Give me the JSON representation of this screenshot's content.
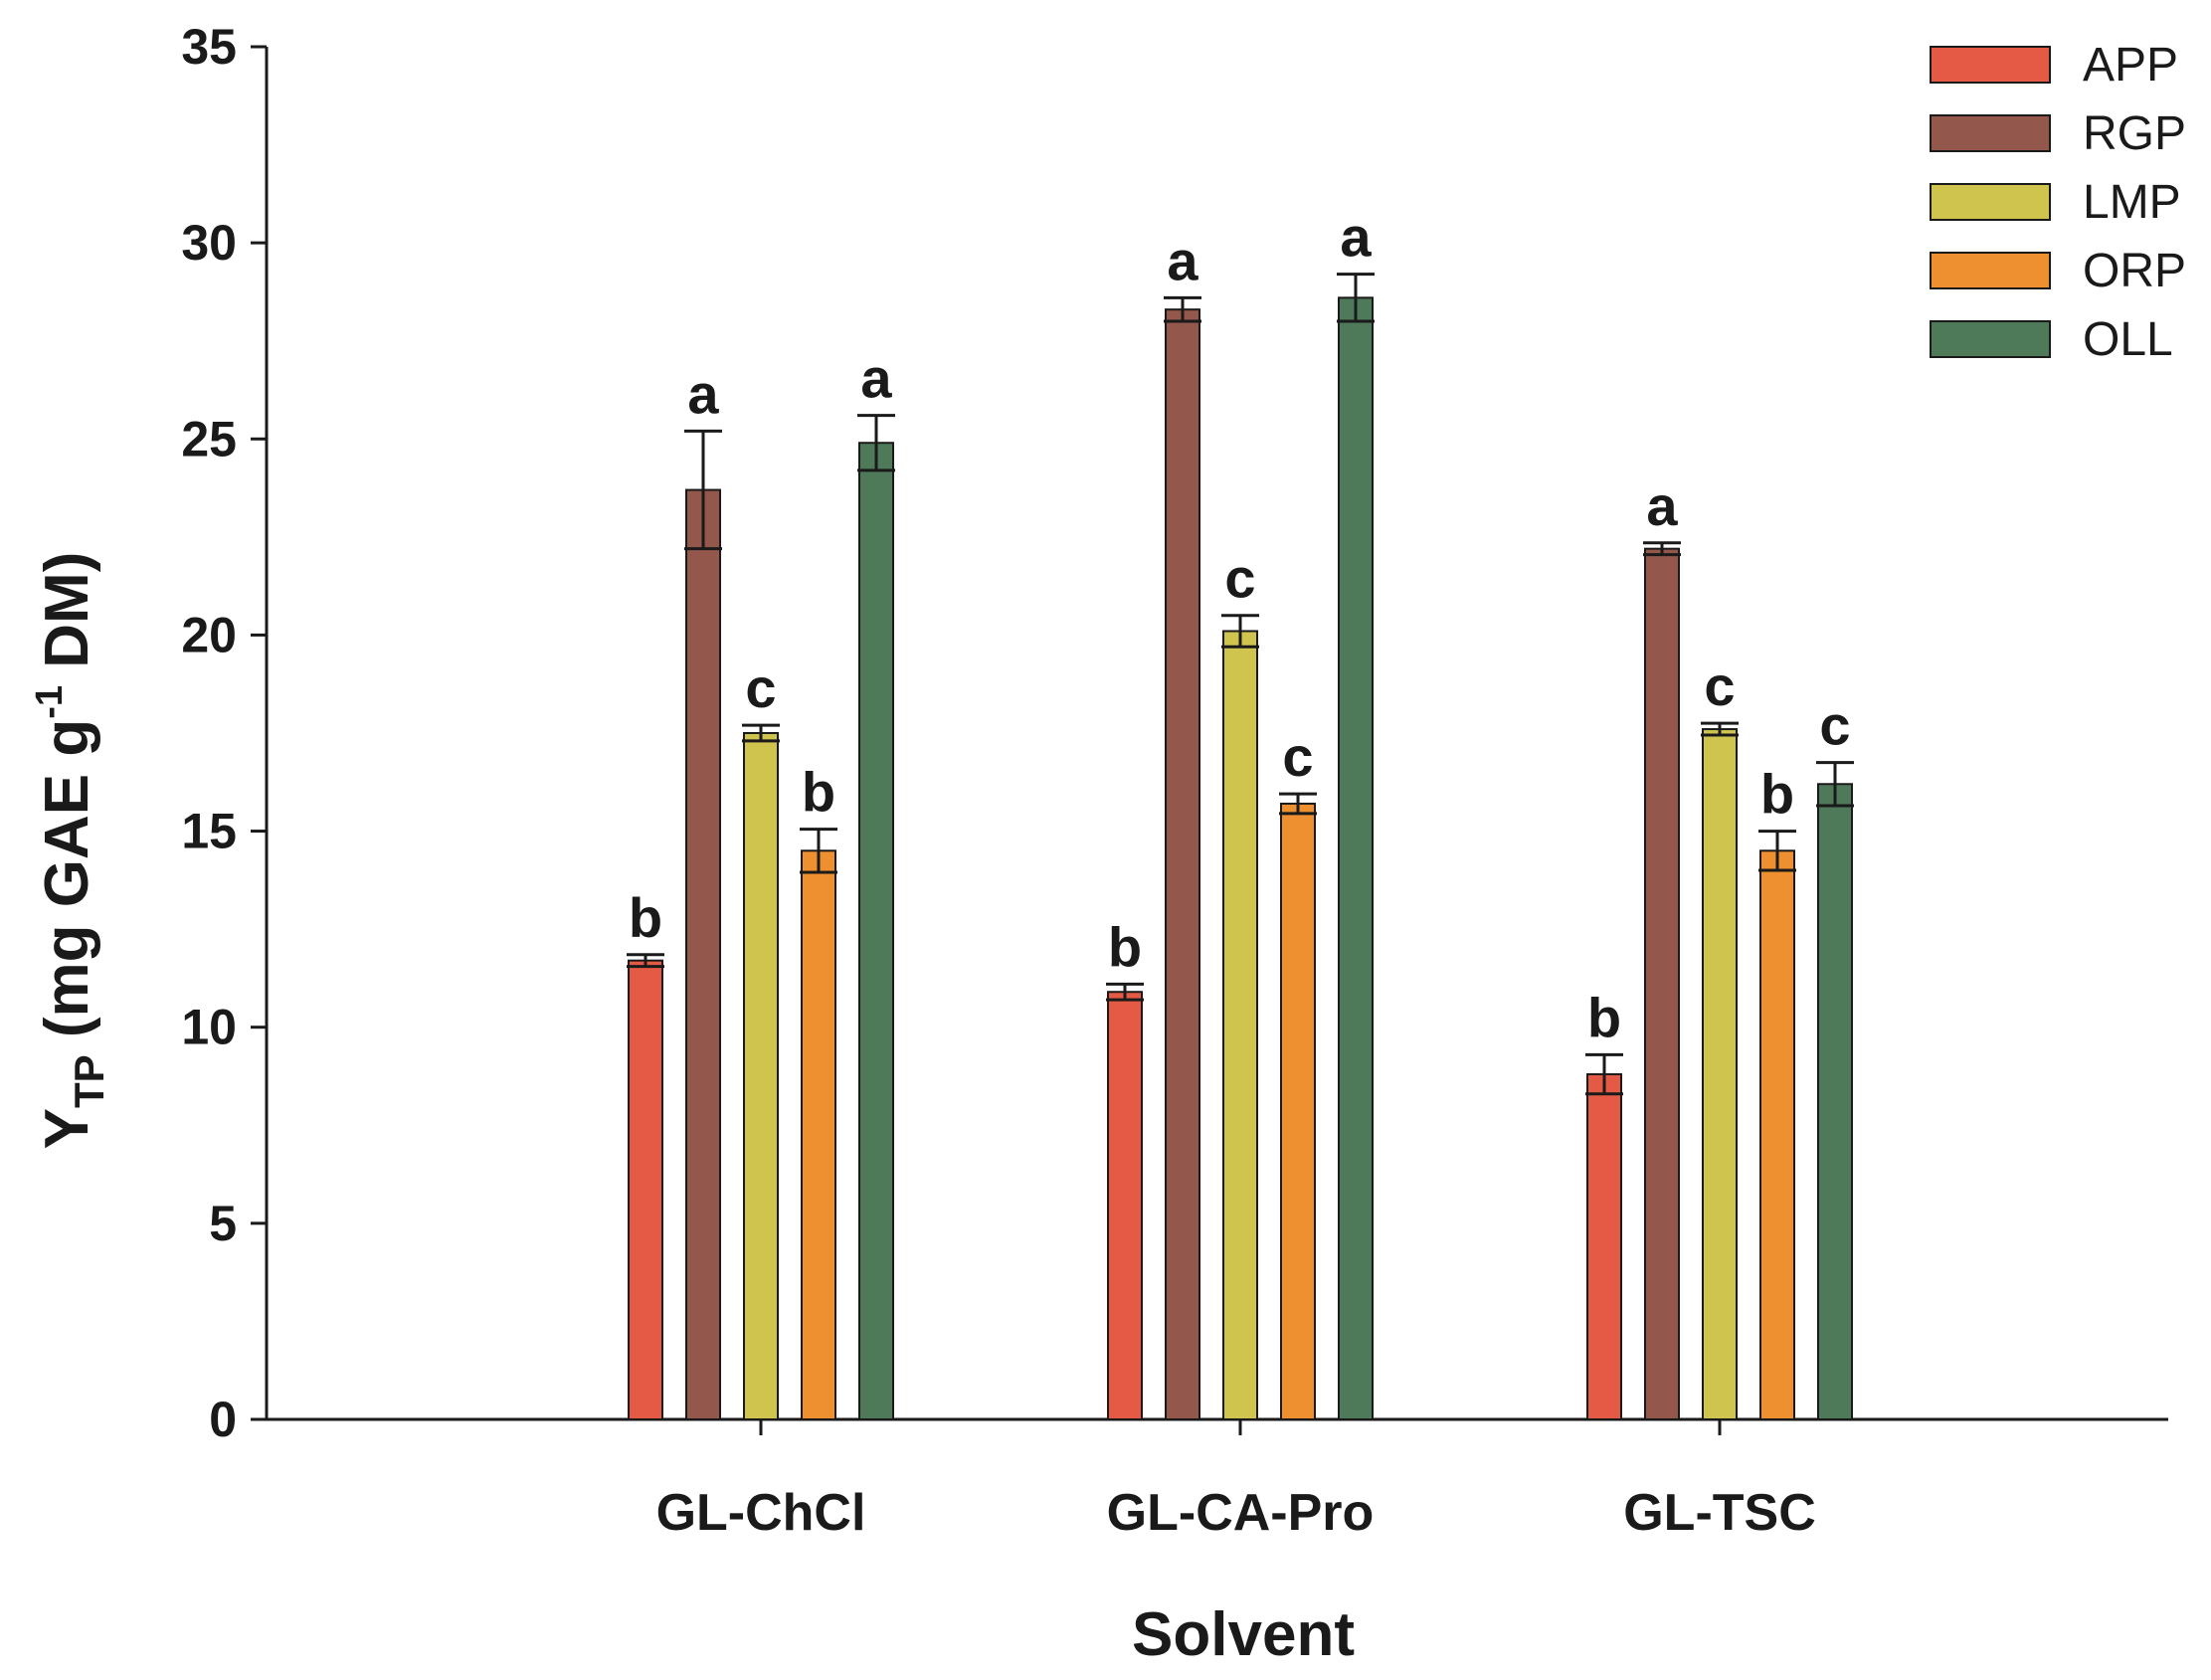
{
  "chart_data": {
    "type": "bar",
    "xlabel": "Solvent",
    "ylabel": {
      "main": "Y",
      "subscript": "TP",
      "unit_prefix": " (mg GAE g",
      "superscript": "-1",
      "unit_suffix": " DM)"
    },
    "ylim": [
      0,
      35
    ],
    "yticks": [
      0,
      5,
      10,
      15,
      20,
      25,
      30,
      35
    ],
    "categories": [
      "GL-ChCl",
      "GL-CA-Pro",
      "GL-TSC"
    ],
    "legend_position": "top-right",
    "series": [
      {
        "name": "APP",
        "color": "#e55a44",
        "values": [
          11.7,
          10.9,
          8.8
        ],
        "errors": [
          0.15,
          0.2,
          0.5
        ],
        "labels": [
          "b",
          "b",
          "b"
        ]
      },
      {
        "name": "RGP",
        "color": "#93574b",
        "values": [
          23.7,
          28.3,
          22.2
        ],
        "errors": [
          1.5,
          0.3,
          0.15
        ],
        "labels": [
          "a",
          "a",
          "a"
        ]
      },
      {
        "name": "LMP",
        "color": "#cfc44e",
        "values": [
          17.5,
          20.1,
          17.6
        ],
        "errors": [
          0.2,
          0.4,
          0.15
        ],
        "labels": [
          "c",
          "c",
          "c"
        ]
      },
      {
        "name": "ORP",
        "color": "#ef9030",
        "values": [
          14.5,
          15.7,
          14.5
        ],
        "errors": [
          0.55,
          0.25,
          0.5
        ],
        "labels": [
          "b",
          "c",
          "b"
        ]
      },
      {
        "name": "OLL",
        "color": "#4f7a59",
        "values": [
          24.9,
          28.6,
          16.2
        ],
        "errors": [
          0.7,
          0.6,
          0.55
        ],
        "labels": [
          "a",
          "a",
          "c"
        ]
      }
    ]
  }
}
